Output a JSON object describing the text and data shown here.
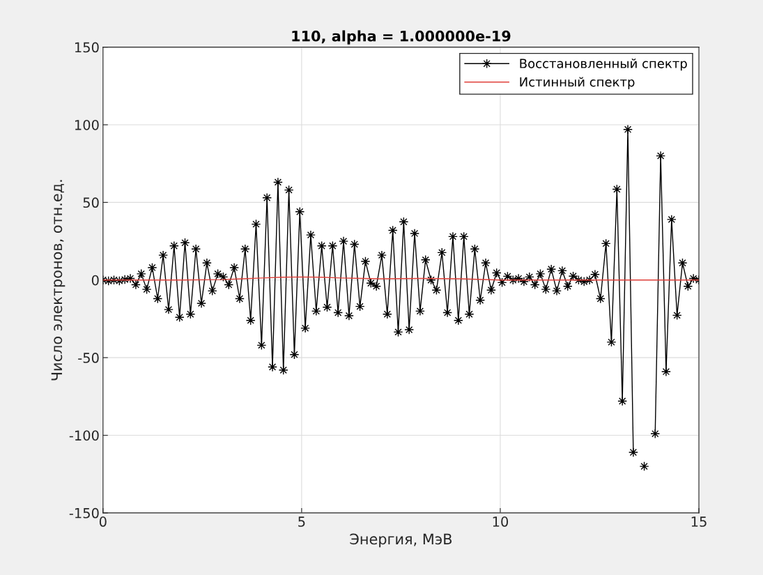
{
  "chart_data": {
    "type": "line",
    "title": "110, alpha = 1.000000e-19",
    "xlabel": "Энергия, МэВ",
    "ylabel": "Число электронов, отн.ед.",
    "xlim": [
      0,
      15
    ],
    "xticks": [
      0,
      5,
      10,
      15
    ],
    "ylim": [
      -150,
      150
    ],
    "yticks": [
      -150,
      -100,
      -50,
      0,
      50,
      100,
      150
    ],
    "grid": true,
    "legend": "top right",
    "line_style": "solid",
    "series": [
      {
        "name": "Восстановленный спектр",
        "color": "#000000",
        "marker": "star",
        "x": [
          0,
          0.138,
          0.275,
          0.413,
          0.55,
          0.688,
          0.826,
          0.963,
          1.101,
          1.239,
          1.376,
          1.514,
          1.651,
          1.789,
          1.927,
          2.064,
          2.202,
          2.339,
          2.477,
          2.615,
          2.752,
          2.89,
          3.028,
          3.165,
          3.303,
          3.44,
          3.578,
          3.716,
          3.853,
          3.991,
          4.128,
          4.266,
          4.404,
          4.541,
          4.679,
          4.817,
          4.954,
          5.092,
          5.229,
          5.367,
          5.505,
          5.642,
          5.78,
          5.917,
          6.055,
          6.193,
          6.33,
          6.468,
          6.606,
          6.743,
          6.881,
          7.018,
          7.156,
          7.294,
          7.431,
          7.569,
          7.706,
          7.844,
          7.982,
          8.119,
          8.257,
          8.394,
          8.532,
          8.67,
          8.807,
          8.945,
          9.083,
          9.22,
          9.358,
          9.495,
          9.633,
          9.771,
          9.908,
          10.046,
          10.183,
          10.321,
          10.459,
          10.596,
          10.734,
          10.872,
          11.009,
          11.147,
          11.284,
          11.422,
          11.56,
          11.697,
          11.835,
          11.972,
          12.11,
          12.248,
          12.385,
          12.523,
          12.661,
          12.798,
          12.936,
          13.073,
          13.211,
          13.349,
          13.486,
          13.624,
          13.761,
          13.899,
          14.037,
          14.174,
          14.312,
          14.45,
          14.587,
          14.725,
          14.862,
          15
        ],
        "values": [
          0,
          -0.6,
          0,
          -0.5,
          0.3,
          1,
          -3,
          4,
          -6,
          8,
          -12,
          16,
          -19,
          22,
          -24,
          24,
          -22,
          20,
          -15,
          11,
          -7,
          4,
          2,
          -3,
          8,
          -12,
          20,
          -26,
          36,
          -42,
          53,
          -56,
          63,
          -58,
          58,
          -48,
          44,
          -31,
          29,
          -20,
          22,
          -17.5,
          22,
          -21,
          25,
          -23,
          23,
          -17,
          12,
          -2,
          -4,
          16,
          -22,
          32,
          -33.5,
          37.5,
          -32,
          30,
          -20,
          13,
          0,
          -6.5,
          17.7,
          -21,
          28,
          -26,
          28,
          -22,
          20,
          -13,
          11,
          -6.5,
          4.6,
          -1.6,
          2.4,
          0,
          1,
          -1,
          2,
          -3,
          4,
          -6,
          7,
          -7,
          6,
          -4,
          2.5,
          0,
          -1,
          0,
          3.6,
          -12,
          23.5,
          -40,
          58.5,
          -78,
          97,
          -111,
          null,
          -120,
          null,
          -99,
          80,
          -59,
          39,
          -22.7,
          11,
          -4,
          1,
          0
        ]
      },
      {
        "name": "Истинный спектр",
        "color": "#e0403a",
        "marker": "none",
        "x": [
          0,
          1,
          2,
          3,
          3.5,
          4,
          4.5,
          5,
          5.5,
          6,
          7,
          8,
          9,
          10,
          11,
          12,
          13,
          14,
          15
        ],
        "values": [
          0,
          0,
          0,
          0.3,
          0.8,
          1.3,
          1.8,
          2,
          1.8,
          1.3,
          0.8,
          1,
          0.8,
          0,
          0,
          0,
          0,
          0,
          0
        ]
      }
    ]
  }
}
